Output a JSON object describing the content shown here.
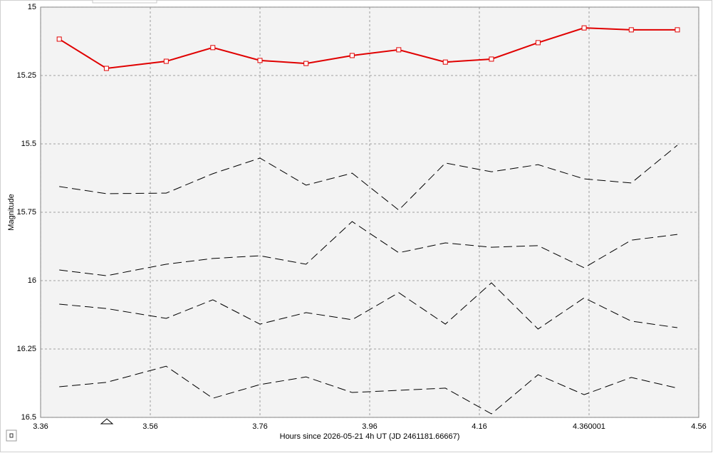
{
  "chart_data": {
    "type": "line",
    "xlabel": "Hours since 2026-05-21 4h UT (JD 2461181.66667)",
    "ylabel": "Magnitude",
    "xlim": [
      3.36,
      4.56
    ],
    "xticks": [
      3.36,
      3.56,
      3.76,
      3.96,
      4.16,
      4.360001,
      4.56
    ],
    "ylim": [
      16.5,
      15
    ],
    "yticks": [
      15,
      15.25,
      15.5,
      15.75,
      16,
      16.25,
      16.5
    ],
    "grid": true,
    "x": [
      3.394,
      3.48,
      3.589,
      3.674,
      3.76,
      3.844,
      3.928,
      4.013,
      4.098,
      4.182,
      4.267,
      4.351,
      4.437,
      4.521
    ],
    "series": [
      {
        "color": "#e00000",
        "dashed": false,
        "marker": "square",
        "values": [
          15.117,
          15.224,
          15.198,
          15.148,
          15.195,
          15.206,
          15.177,
          15.156,
          15.201,
          15.19,
          15.13,
          15.076,
          15.083,
          15.083
        ]
      },
      {
        "color": "#000000",
        "dashed": true,
        "values": [
          15.656,
          15.682,
          15.68,
          15.609,
          15.552,
          15.651,
          15.607,
          15.742,
          15.57,
          15.602,
          15.576,
          15.628,
          15.643,
          15.505
        ]
      },
      {
        "color": "#000000",
        "dashed": true,
        "values": [
          15.961,
          15.982,
          15.94,
          15.919,
          15.909,
          15.94,
          15.784,
          15.898,
          15.862,
          15.878,
          15.872,
          15.953,
          15.852,
          15.831
        ]
      },
      {
        "color": "#000000",
        "dashed": true,
        "values": [
          16.086,
          16.102,
          16.138,
          16.07,
          16.159,
          16.117,
          16.143,
          16.044,
          16.159,
          16.008,
          16.177,
          16.063,
          16.148,
          16.172
        ]
      },
      {
        "color": "#000000",
        "dashed": true,
        "values": [
          16.388,
          16.372,
          16.313,
          16.43,
          16.38,
          16.352,
          16.409,
          16.401,
          16.393,
          16.487,
          16.344,
          16.417,
          16.354,
          16.393
        ]
      }
    ]
  }
}
